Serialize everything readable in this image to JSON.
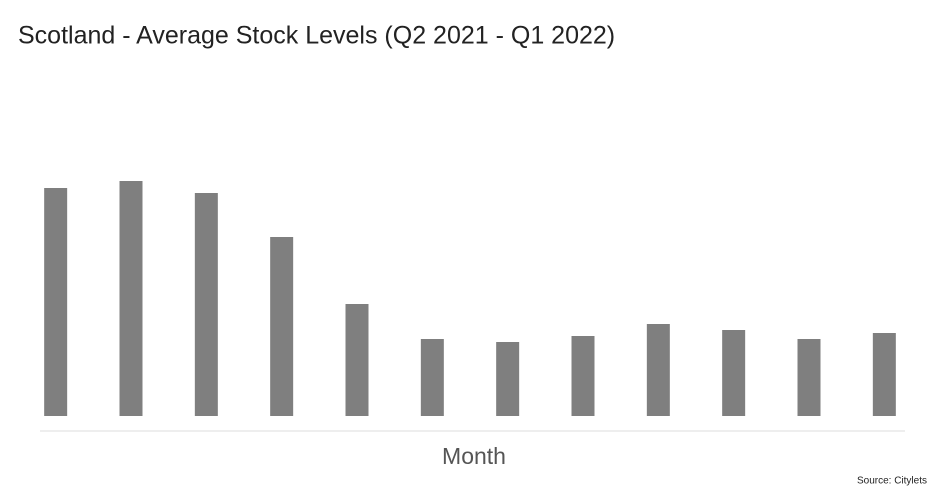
{
  "chart_data": {
    "type": "bar",
    "title": "Scotland - Average Stock Levels (Q2 2021 - Q1 2022)",
    "x_label": "Month",
    "source": "Source: Citylets",
    "categories": [
      null,
      null,
      null,
      null,
      null,
      null,
      null,
      null,
      null,
      null,
      null,
      null
    ],
    "values": [
      228,
      235,
      223,
      179,
      112,
      77,
      74,
      80,
      92,
      86,
      77,
      83
    ],
    "color": "#7f7f7f",
    "ylim": [
      0,
      250
    ]
  }
}
